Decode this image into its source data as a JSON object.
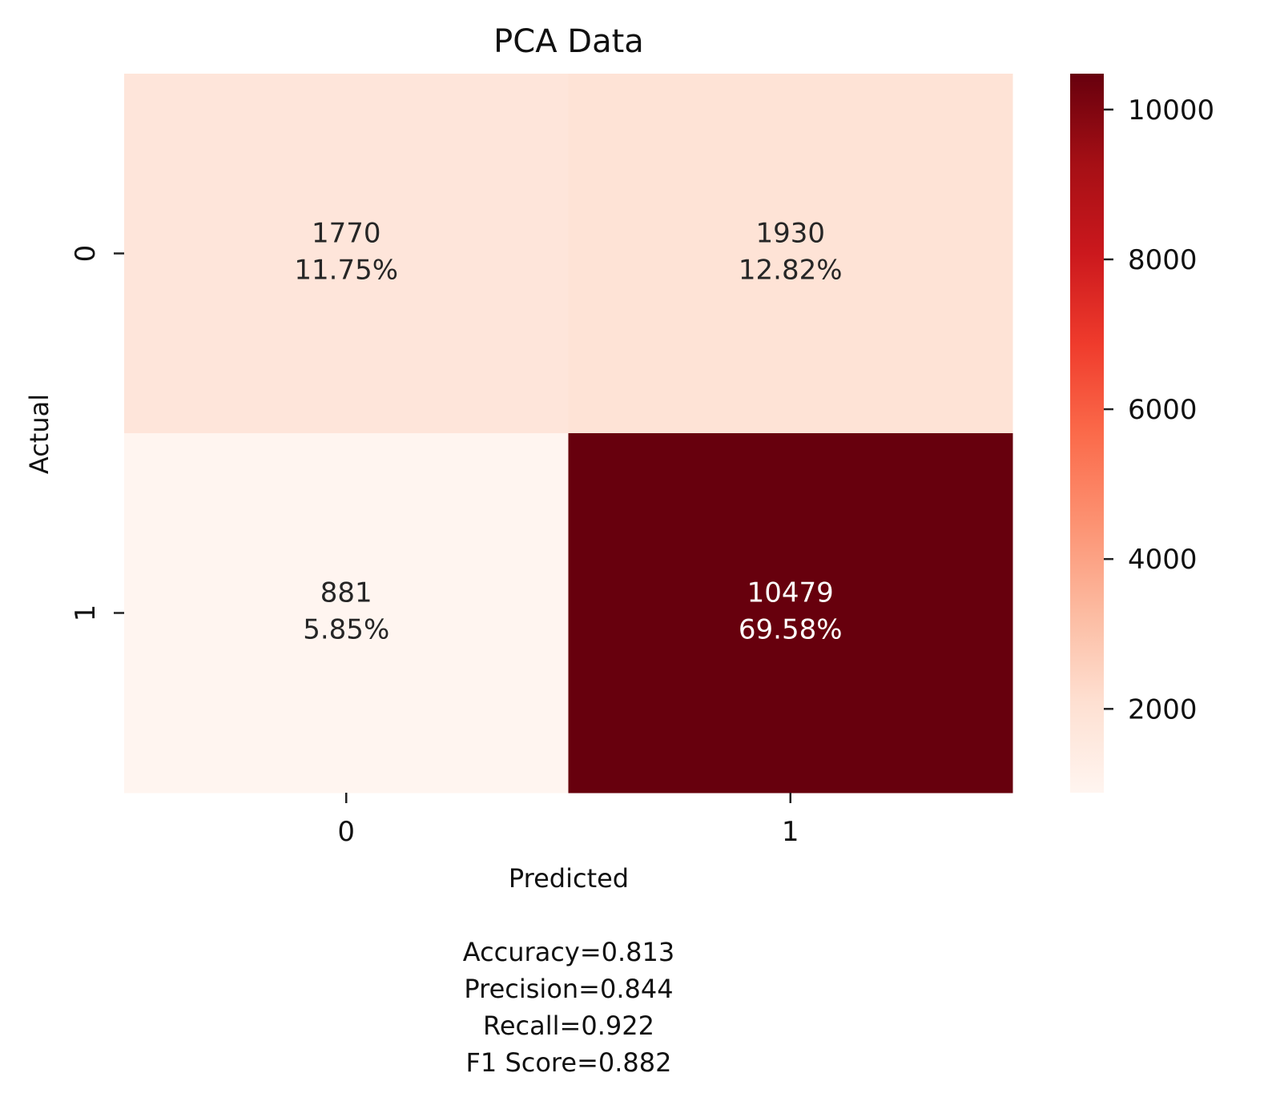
{
  "chart_data": {
    "type": "heatmap",
    "title": "PCA Data",
    "xlabel": "Predicted",
    "ylabel": "Actual",
    "x_categories": [
      "0",
      "1"
    ],
    "y_categories": [
      "0",
      "1"
    ],
    "values": [
      [
        1770,
        1930
      ],
      [
        881,
        10479
      ]
    ],
    "cell_labels": [
      [
        {
          "count": "1770",
          "percent": "11.75%"
        },
        {
          "count": "1930",
          "percent": "12.82%"
        }
      ],
      [
        {
          "count": "881",
          "percent": "5.85%"
        },
        {
          "count": "10479",
          "percent": "69.58%"
        }
      ]
    ],
    "colormap": "Reds",
    "color_range": [
      881,
      10479
    ],
    "colorbar_ticks": [
      "2000",
      "4000",
      "6000",
      "8000",
      "10000"
    ],
    "metrics": [
      "Accuracy=0.813",
      "Precision=0.844",
      "Recall=0.922",
      "F1 Score=0.882"
    ]
  }
}
